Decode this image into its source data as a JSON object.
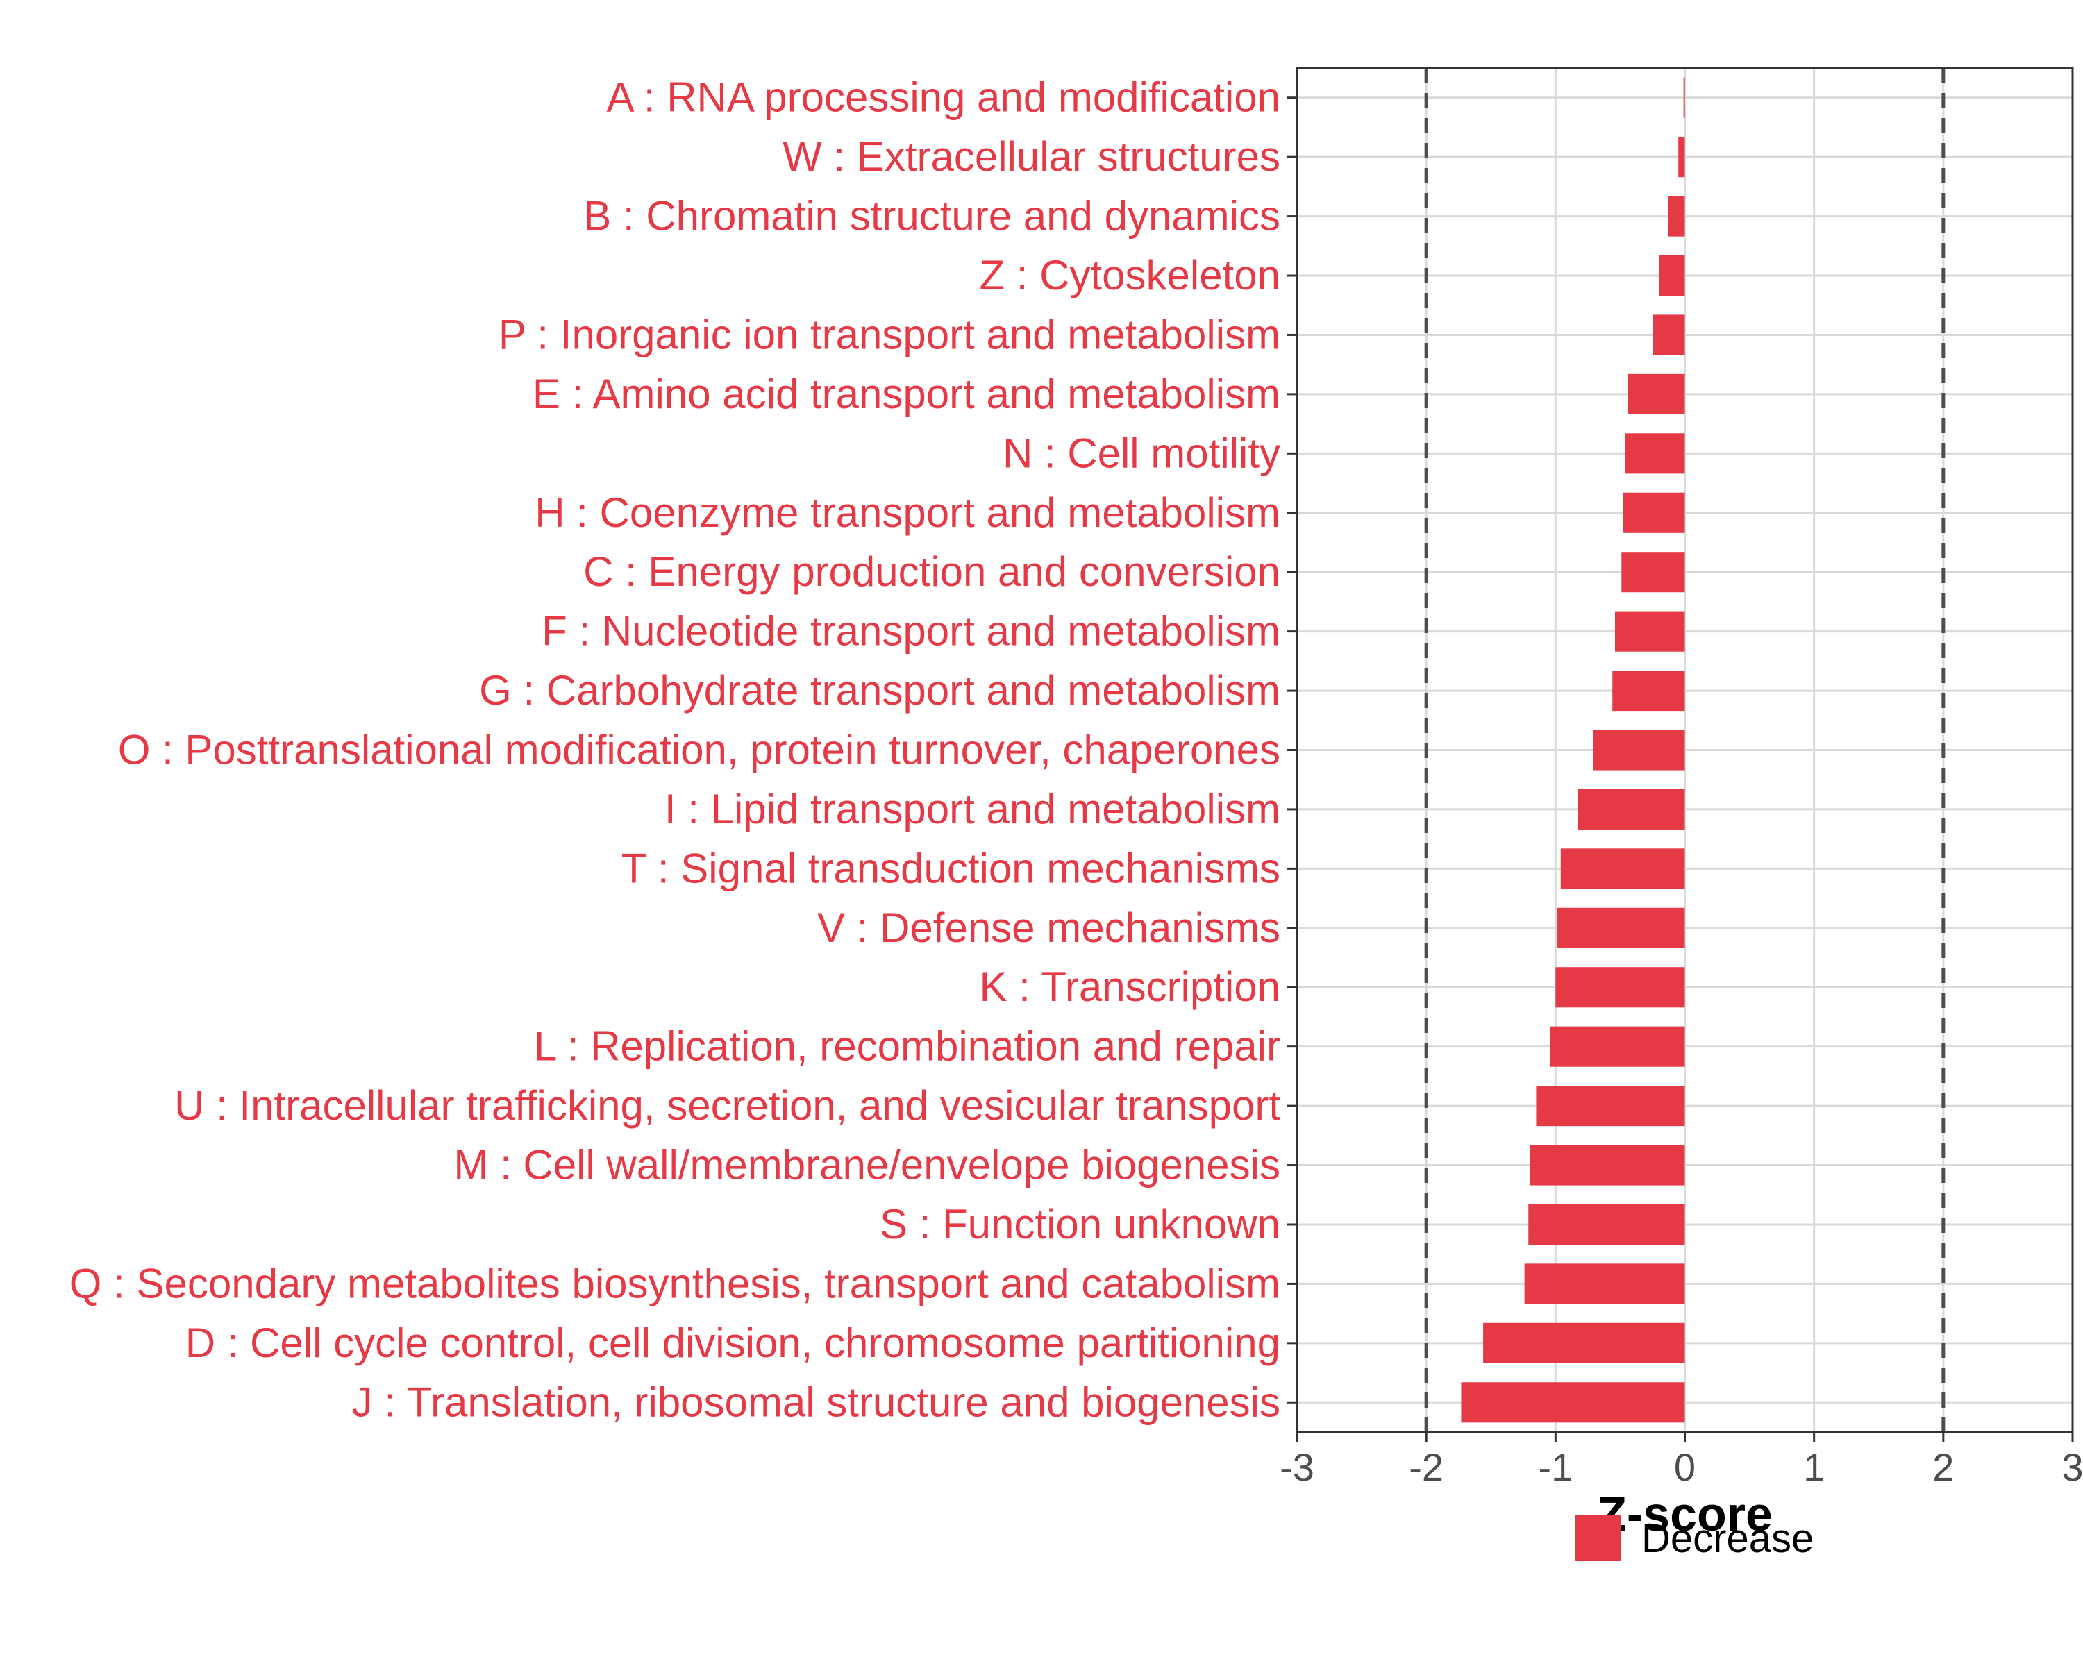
{
  "colors": {
    "bar": "#e63946",
    "label": "#e63946",
    "grid": "#d9d9d9",
    "panel_border": "#333333",
    "threshold": "#4d4d4d"
  },
  "chart_data": {
    "type": "bar",
    "orientation": "horizontal",
    "categories": [
      "A : RNA processing and modification",
      "W : Extracellular structures",
      "B : Chromatin structure and dynamics",
      "Z : Cytoskeleton",
      "P : Inorganic ion transport and metabolism",
      "E : Amino acid transport and metabolism",
      "N : Cell motility",
      "H : Coenzyme transport and metabolism",
      "C : Energy production and conversion",
      "F : Nucleotide transport and metabolism",
      "G : Carbohydrate transport and metabolism",
      "O : Posttranslational modification, protein turnover, chaperones",
      "I : Lipid transport and metabolism",
      "T : Signal transduction mechanisms",
      "V : Defense mechanisms",
      "K : Transcription",
      "L : Replication, recombination and repair",
      "U : Intracellular trafficking, secretion, and vesicular transport",
      "M : Cell wall/membrane/envelope biogenesis",
      "S : Function unknown",
      "Q : Secondary metabolites biosynthesis, transport and catabolism",
      "D : Cell cycle control, cell division, chromosome partitioning",
      "J : Translation, ribosomal structure and biogenesis"
    ],
    "values": [
      -0.01,
      -0.05,
      -0.13,
      -0.2,
      -0.25,
      -0.44,
      -0.46,
      -0.48,
      -0.49,
      -0.54,
      -0.56,
      -0.71,
      -0.83,
      -0.96,
      -0.99,
      -1.0,
      -1.04,
      -1.15,
      -1.2,
      -1.21,
      -1.24,
      -1.56,
      -1.73
    ],
    "title": "",
    "xlabel": "Z-score",
    "ylabel": "",
    "xlim": [
      -3,
      3
    ],
    "xticks": [
      -3,
      -2,
      -1,
      0,
      1,
      2,
      3
    ],
    "xtick_labels": [
      "-3",
      "-2",
      "-1",
      "0",
      "1",
      "2",
      "3"
    ],
    "threshold_lines": [
      -2,
      2
    ],
    "grid": true,
    "legend": {
      "position": "bottom",
      "entries": [
        {
          "label": "Decrease",
          "color": "#e63946"
        }
      ]
    }
  }
}
